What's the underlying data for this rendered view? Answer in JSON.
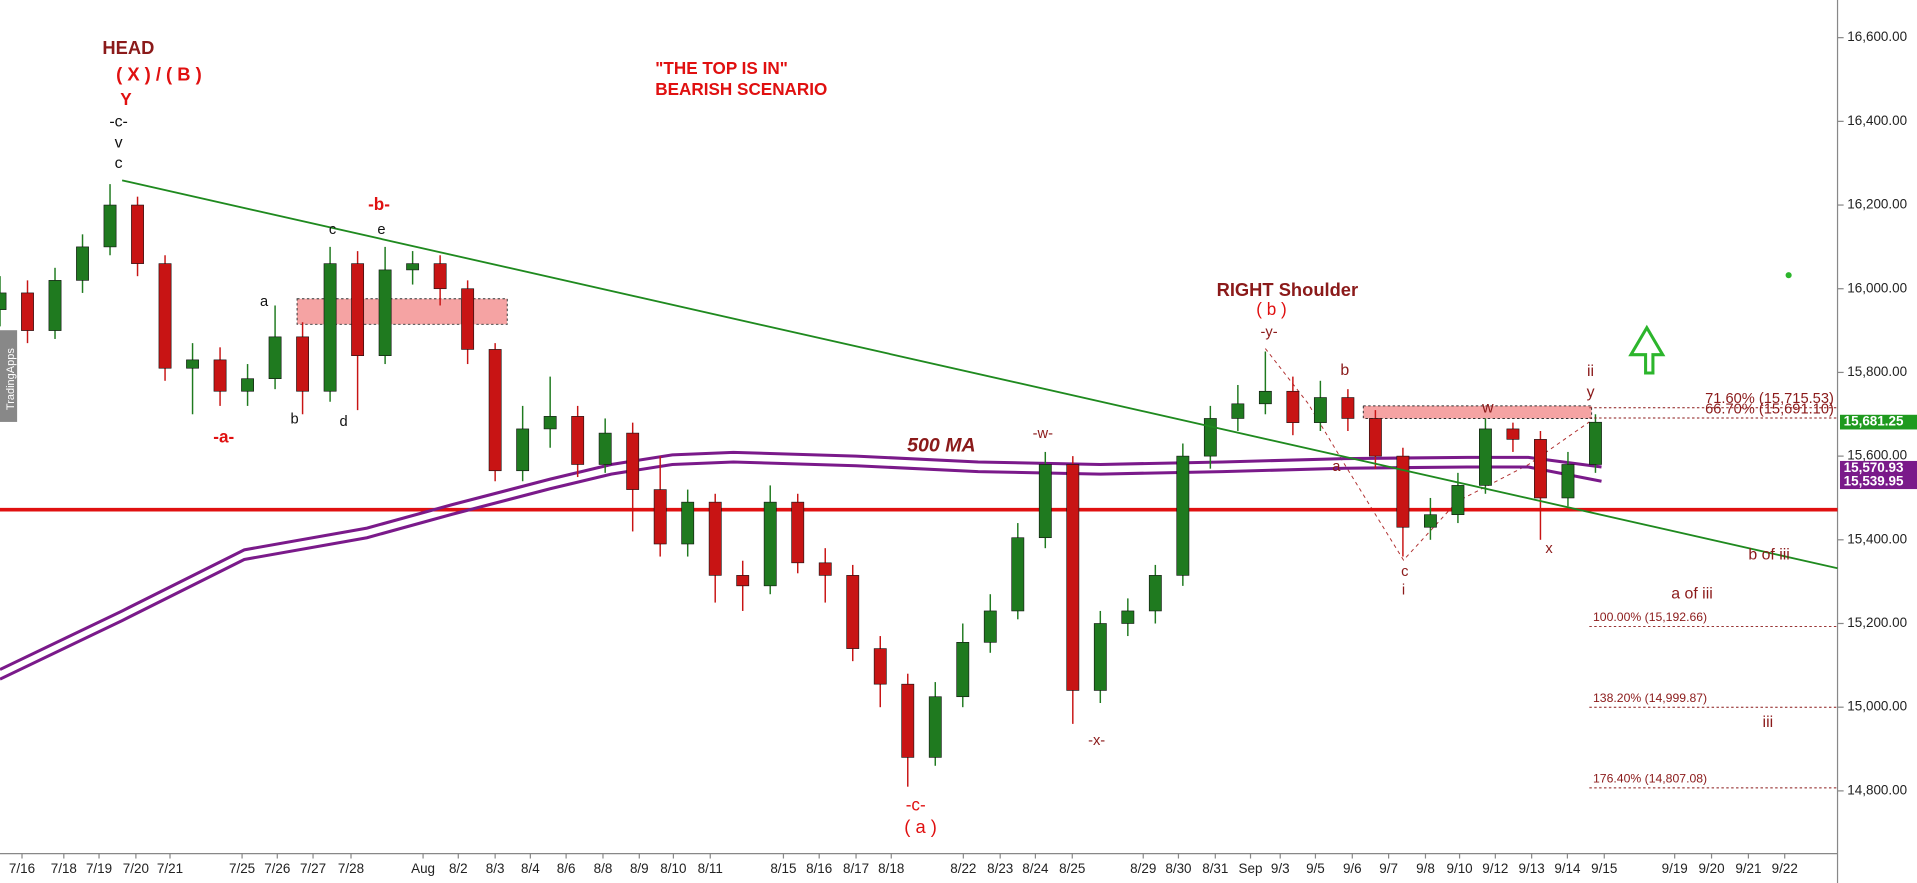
{
  "chart_data": {
    "type": "candlestick",
    "xlim": [
      0,
      334
    ],
    "ylim": [
      14650,
      16690
    ],
    "up_color": "#1f7a1f",
    "down_color": "#c81414",
    "x": [
      0,
      5,
      10,
      15,
      20,
      25,
      30,
      35,
      40,
      45,
      50,
      55,
      60,
      65,
      70,
      75,
      80,
      85,
      90,
      95,
      100,
      105,
      110,
      115,
      120,
      125,
      130,
      135,
      140,
      145,
      150,
      155,
      160,
      165,
      170,
      175,
      180,
      185,
      190,
      195,
      200,
      205,
      210,
      215,
      220,
      225,
      230,
      235,
      240,
      245,
      250,
      255,
      260,
      265,
      270,
      275,
      280,
      285,
      290
    ],
    "open": [
      15950,
      15990,
      15900,
      16020,
      16100,
      16200,
      16060,
      15810,
      15830,
      15755,
      15785,
      15885,
      15755,
      16060,
      15840,
      16045,
      16060,
      16000,
      15855,
      15565,
      15665,
      15695,
      15580,
      15655,
      15520,
      15390,
      15490,
      15315,
      15290,
      15490,
      15345,
      15315,
      15140,
      15055,
      14880,
      15025,
      15155,
      15230,
      15405,
      15580,
      15040,
      15200,
      15230,
      15315,
      15600,
      15690,
      15725,
      15755,
      15680,
      15740,
      15690,
      15600,
      15430,
      15460,
      15530,
      15665,
      15640,
      15500,
      15580
    ],
    "high": [
      16030,
      16020,
      16050,
      16130,
      16250,
      16220,
      16080,
      15870,
      15860,
      15820,
      15960,
      15920,
      16100,
      16090,
      16100,
      16090,
      16080,
      16020,
      15870,
      15720,
      15790,
      15720,
      15690,
      15680,
      15600,
      15520,
      15510,
      15350,
      15530,
      15510,
      15380,
      15340,
      15170,
      15080,
      15060,
      15200,
      15270,
      15440,
      15610,
      15600,
      15230,
      15260,
      15340,
      15630,
      15720,
      15770,
      15850,
      15790,
      15780,
      15760,
      15710,
      15620,
      15500,
      15560,
      15690,
      15680,
      15660,
      15610,
      15700
    ],
    "low": [
      15910,
      15870,
      15880,
      15990,
      16080,
      16030,
      15780,
      15700,
      15720,
      15720,
      15760,
      15700,
      15730,
      15710,
      15820,
      16010,
      15960,
      15820,
      15540,
      15540,
      15620,
      15550,
      15560,
      15420,
      15360,
      15360,
      15250,
      15230,
      15270,
      15320,
      15250,
      15110,
      15000,
      14810,
      14860,
      15000,
      15130,
      15210,
      15380,
      14960,
      15010,
      15170,
      15200,
      15290,
      15570,
      15660,
      15700,
      15650,
      15660,
      15660,
      15570,
      15360,
      15400,
      15440,
      15510,
      15610,
      15400,
      15480,
      15560
    ],
    "close": [
      15990,
      15900,
      16020,
      16100,
      16200,
      16060,
      15810,
      15830,
      15755,
      15785,
      15885,
      15755,
      16060,
      15840,
      16045,
      16060,
      16000,
      15855,
      15565,
      15665,
      15695,
      15580,
      15655,
      15520,
      15390,
      15490,
      15315,
      15290,
      15490,
      15345,
      15315,
      15140,
      15055,
      14880,
      15025,
      15155,
      15230,
      15405,
      15580,
      15040,
      15200,
      15230,
      15315,
      15600,
      15690,
      15725,
      15755,
      15680,
      15740,
      15690,
      15600,
      15430,
      15460,
      15530,
      15665,
      15640,
      15500,
      15580,
      15681
    ],
    "yticks": [
      {
        "value": 14800,
        "label": "14,800.00"
      },
      {
        "value": 15000,
        "label": "15,000.00"
      },
      {
        "value": 15200,
        "label": "15,200.00"
      },
      {
        "value": 15400,
        "label": "15,400.00"
      },
      {
        "value": 15600,
        "label": "15,600.00"
      },
      {
        "value": 15800,
        "label": "15,800.00"
      },
      {
        "value": 16000,
        "label": "16,000.00"
      },
      {
        "value": 16200,
        "label": "16,200.00"
      },
      {
        "value": 16400,
        "label": "16,400.00"
      },
      {
        "value": 16600,
        "label": "16,600.00"
      }
    ],
    "xticks": [
      {
        "value": 4,
        "label": "7/16"
      },
      {
        "value": 11.6,
        "label": "7/18"
      },
      {
        "value": 18,
        "label": "7/19"
      },
      {
        "value": 24.7,
        "label": "7/20"
      },
      {
        "value": 30.9,
        "label": "7/21"
      },
      {
        "value": 44,
        "label": "7/25"
      },
      {
        "value": 50.4,
        "label": "7/26"
      },
      {
        "value": 56.9,
        "label": "7/27"
      },
      {
        "value": 63.8,
        "label": "7/28"
      },
      {
        "value": 76.9,
        "label": "Aug"
      },
      {
        "value": 83.3,
        "label": "8/2"
      },
      {
        "value": 90,
        "label": "8/3"
      },
      {
        "value": 96.4,
        "label": "8/4"
      },
      {
        "value": 102.9,
        "label": "8/6"
      },
      {
        "value": 109.6,
        "label": "8/8"
      },
      {
        "value": 116.2,
        "label": "8/9"
      },
      {
        "value": 122.4,
        "label": "8/10"
      },
      {
        "value": 129.1,
        "label": "8/11"
      },
      {
        "value": 142.4,
        "label": "8/15"
      },
      {
        "value": 148.9,
        "label": "8/16"
      },
      {
        "value": 155.6,
        "label": "8/17"
      },
      {
        "value": 162,
        "label": "8/18"
      },
      {
        "value": 175.1,
        "label": "8/22"
      },
      {
        "value": 181.8,
        "label": "8/23"
      },
      {
        "value": 188.2,
        "label": "8/24"
      },
      {
        "value": 194.9,
        "label": "8/25"
      },
      {
        "value": 207.8,
        "label": "8/29"
      },
      {
        "value": 214.2,
        "label": "8/30"
      },
      {
        "value": 220.9,
        "label": "8/31"
      },
      {
        "value": 227.3,
        "label": "Sep"
      },
      {
        "value": 232.7,
        "label": "9/3"
      },
      {
        "value": 239.1,
        "label": "9/5"
      },
      {
        "value": 245.8,
        "label": "9/6"
      },
      {
        "value": 252.4,
        "label": "9/7"
      },
      {
        "value": 259.1,
        "label": "9/8"
      },
      {
        "value": 265.3,
        "label": "9/10"
      },
      {
        "value": 271.8,
        "label": "9/12"
      },
      {
        "value": 278.4,
        "label": "9/13"
      },
      {
        "value": 284.9,
        "label": "9/14"
      },
      {
        "value": 291.6,
        "label": "9/15"
      },
      {
        "value": 304.4,
        "label": "9/19"
      },
      {
        "value": 311.1,
        "label": "9/20"
      },
      {
        "value": 317.8,
        "label": "9/21"
      },
      {
        "value": 324.4,
        "label": "9/22"
      }
    ],
    "hline": {
      "value": 15472,
      "color": "#e01010"
    },
    "trendline": {
      "x": [
        22.2,
        334
      ],
      "values": [
        16259,
        15332
      ],
      "color": "#1f8a1f"
    },
    "moving_averages": [
      {
        "color": "#7a1a8a",
        "x": [
          0,
          22.2,
          44.4,
          66.7,
          82.2,
          100,
          111.1,
          122.2,
          133.3,
          155.6,
          177.8,
          200,
          222.2,
          244.4,
          266.7,
          277.8,
          291.1
        ],
        "values": [
          15090,
          15230,
          15376,
          15428,
          15484,
          15545,
          15580,
          15603,
          15609,
          15600,
          15586,
          15580,
          15586,
          15594,
          15597,
          15597,
          15574
        ]
      },
      {
        "color": "#7a1a8a",
        "x": [
          0,
          22.2,
          44.4,
          66.7,
          82.2,
          100,
          111.1,
          122.2,
          133.3,
          155.6,
          177.8,
          200,
          222.2,
          244.4,
          266.7,
          277.8,
          291.1
        ],
        "values": [
          15067,
          15207,
          15353,
          15405,
          15461,
          15522,
          15557,
          15580,
          15586,
          15577,
          15563,
          15557,
          15563,
          15571,
          15574,
          15574,
          15540
        ]
      }
    ],
    "zones": [
      {
        "x": [
          54,
          92.2
        ],
        "values": [
          15915,
          15976
        ]
      },
      {
        "x": [
          247.8,
          289.3
        ],
        "values": [
          15690,
          15720
        ]
      }
    ],
    "fib_levels": [
      {
        "value": 15715.53,
        "label": "71.60% (15,715.53)"
      },
      {
        "value": 15691.1,
        "label": "66.70% (15,691.10)"
      },
      {
        "value": 15192.66,
        "label": "100.00% (15,192.66)"
      },
      {
        "value": 14999.87,
        "label": "138.20% (14,999.87)"
      },
      {
        "value": 14807.08,
        "label": "176.40% (14,807.08)"
      }
    ],
    "price_tags": [
      {
        "value": 15681.25,
        "label": "15,681.25",
        "color": "#1f9a1f"
      },
      {
        "value": 15570.93,
        "label": "15,570.93",
        "color": "#7a1a8a"
      },
      {
        "value": 15539.95,
        "label": "15,539.95",
        "color": "#7a1a8a"
      }
    ],
    "watermark": "TradingApps",
    "annotations": [
      "HEAD",
      "( X ) / ( B )",
      "Y",
      "-c-",
      "v",
      "c",
      "\"THE TOP IS IN\"",
      "BEARISH SCENARIO",
      "-b-",
      "c",
      "e",
      "a",
      "b",
      "d",
      "-a-",
      "500 MA",
      "-w-",
      "-x-",
      "-c-",
      "( a )",
      "RIGHT Shoulder",
      "( b )",
      "-y-",
      "b",
      "a",
      "w",
      "c",
      "i",
      "x",
      "ii",
      "y",
      "b of iii",
      "a of iii",
      "iii"
    ]
  }
}
